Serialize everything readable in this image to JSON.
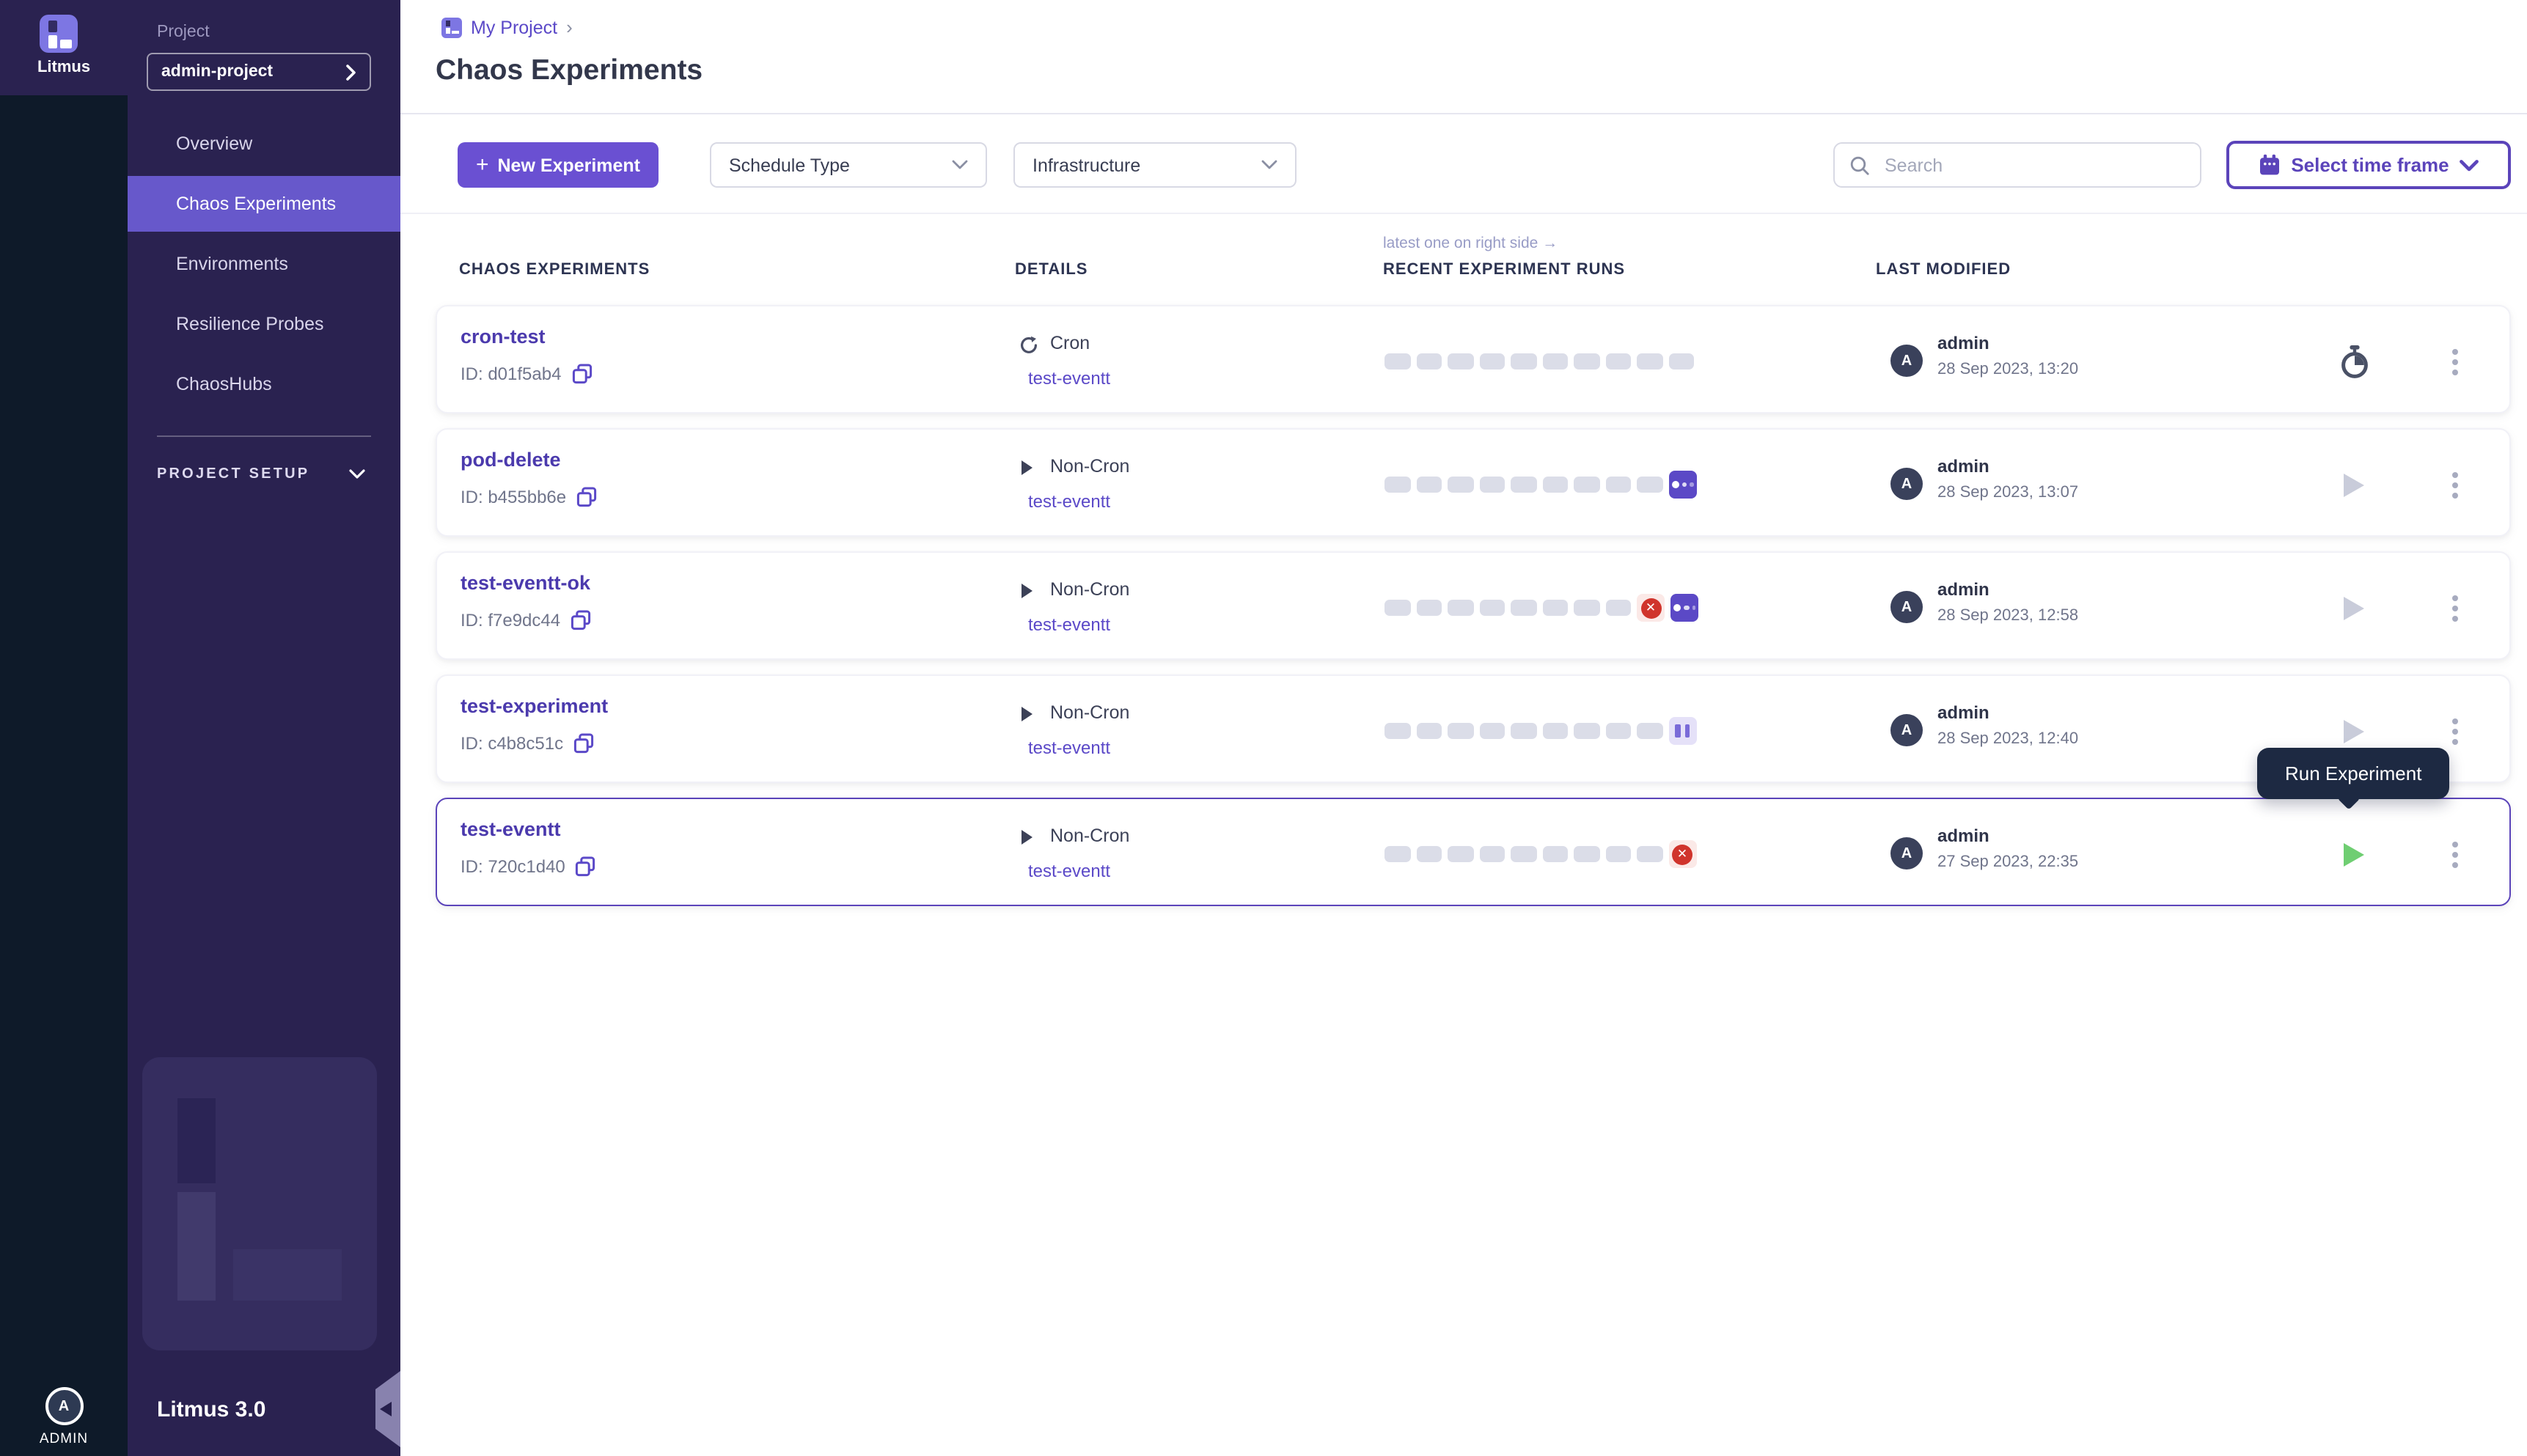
{
  "colors": {
    "brand_lavender": "#7D76E3",
    "sidebar_bg": "#2A2250",
    "rail_bg": "#0E1A29",
    "nav_active_bg": "#6758CB",
    "primary_button_bg": "#6A50D2",
    "accent_purple": "#5B49C8",
    "timeframe_purple": "#5B44BA",
    "selected_row_border": "#5B44BA",
    "tooltip_bg": "#1D2942",
    "run_placeholder": "#DBDDE8",
    "status_running_bg": "#5B49C6",
    "status_failed_red": "#D0342C",
    "status_failed_bg": "#FBE9E7",
    "status_paused_bg": "#E5E1F8",
    "status_paused_bar": "#7A6BD8",
    "run_play_green": "#6FCE72"
  },
  "icons": {
    "brand": "litmus-logo",
    "search": "magnifier",
    "calendar": "calendar",
    "copy": "copy-squares",
    "cron": "refresh-circular-arrow",
    "non_cron": "play-triangle",
    "timer": "stopwatch",
    "kebab": "dots-vertical-menu",
    "chevron_down": "chevron-down",
    "chevron_right": "chevron-right",
    "collapse": "chevron-left-tab"
  },
  "sidebar": {
    "brand": "Litmus",
    "project_label": "Project",
    "project_select": "admin-project",
    "items": [
      {
        "label": "Overview"
      },
      {
        "label": "Chaos Experiments"
      },
      {
        "label": "Environments"
      },
      {
        "label": "Resilience Probes"
      },
      {
        "label": "ChaosHubs"
      }
    ],
    "section_label": "PROJECT SETUP",
    "version": "Litmus 3.0",
    "user_initial": "A",
    "user_label": "ADMIN"
  },
  "breadcrumb": {
    "project": "My Project",
    "separator": "›"
  },
  "page": {
    "title": "Chaos Experiments"
  },
  "toolbar": {
    "new_experiment_plus": "+",
    "new_experiment": "New Experiment",
    "schedule_type": "Schedule Type",
    "infrastructure": "Infrastructure",
    "search_placeholder": "Search",
    "time_frame": "Select time frame"
  },
  "table": {
    "note": "latest one on right side →",
    "columns": {
      "experiments": "CHAOS EXPERIMENTS",
      "details": "DETAILS",
      "runs": "RECENT EXPERIMENT RUNS",
      "modified": "LAST MODIFIED"
    },
    "rows": [
      {
        "name": "cron-test",
        "id": "ID: d01f5ab4",
        "schedule": "Cron",
        "target": "test-eventt",
        "user": "admin",
        "initial": "A",
        "date": "28 Sep 2023, 13:20",
        "runs": {
          "placeholders": 10,
          "statuses": []
        }
      },
      {
        "name": "pod-delete",
        "id": "ID: b455bb6e",
        "schedule": "Non-Cron",
        "target": "test-eventt",
        "user": "admin",
        "initial": "A",
        "date": "28 Sep 2023, 13:07",
        "runs": {
          "placeholders": 9,
          "statuses": [
            "running"
          ]
        }
      },
      {
        "name": "test-eventt-ok",
        "id": "ID: f7e9dc44",
        "schedule": "Non-Cron",
        "target": "test-eventt",
        "user": "admin",
        "initial": "A",
        "date": "28 Sep 2023, 12:58",
        "runs": {
          "placeholders": 8,
          "statuses": [
            "failed",
            "running"
          ]
        }
      },
      {
        "name": "test-experiment",
        "id": "ID: c4b8c51c",
        "schedule": "Non-Cron",
        "target": "test-eventt",
        "user": "admin",
        "initial": "A",
        "date": "28 Sep 2023, 12:40",
        "runs": {
          "placeholders": 9,
          "statuses": [
            "paused"
          ]
        }
      },
      {
        "name": "test-eventt",
        "id": "ID: 720c1d40",
        "schedule": "Non-Cron",
        "target": "test-eventt",
        "user": "admin",
        "initial": "A",
        "date": "27 Sep 2023, 22:35",
        "runs": {
          "placeholders": 9,
          "statuses": [
            "failed"
          ]
        }
      }
    ]
  },
  "tooltip": {
    "label": "Run Experiment"
  }
}
